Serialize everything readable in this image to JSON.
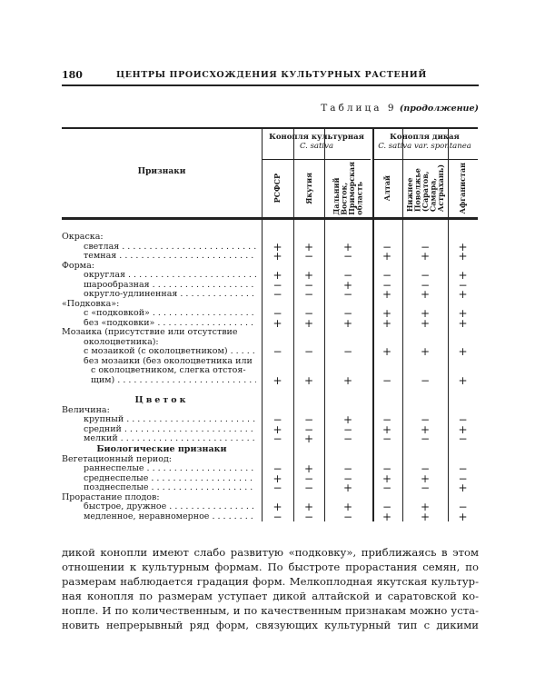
{
  "header": {
    "page_number": "180",
    "running_title": "ЦЕНТРЫ ПРОИСХОЖДЕНИЯ КУЛЬТУРНЫХ РАСТЕНИЙ"
  },
  "table": {
    "title": "Таблица 9",
    "title_note": "(продолжение)",
    "feature_header": "Признаки",
    "groups": [
      {
        "name": "Конопля культурная",
        "latin": "C. sativa"
      },
      {
        "name": "Конопля дикая",
        "latin": "C. sativa var. spontanea"
      }
    ],
    "columns": [
      "РСФСР",
      "Якутия",
      "Дальний\nВосток,\nПриморская\nобласть",
      "Алтай",
      "Нижнее\nПоволжье\n(Саратов,\nСамара,\nАстрахань)",
      "Афганистан"
    ],
    "rows": [
      {
        "label": "Окраска:",
        "level": 0,
        "values": null
      },
      {
        "label": "светлая",
        "level": 1,
        "values": [
          "+",
          "+",
          "+",
          "−",
          "−",
          "+"
        ]
      },
      {
        "label": "темная",
        "level": 1,
        "values": [
          "+",
          "−",
          "−",
          "+",
          "+",
          "+"
        ]
      },
      {
        "label": "Форма:",
        "level": 0,
        "values": null
      },
      {
        "label": "округлая",
        "level": 1,
        "values": [
          "+",
          "+",
          "−",
          "−",
          "−",
          "+"
        ]
      },
      {
        "label": "шарообразная",
        "level": 1,
        "values": [
          "−",
          "−",
          "+",
          "−",
          "−",
          "−"
        ]
      },
      {
        "label": "округло-удлиненная",
        "level": 1,
        "values": [
          "−",
          "−",
          "−",
          "+",
          "+",
          "+"
        ]
      },
      {
        "label": "«Подковка»:",
        "level": 0,
        "values": null
      },
      {
        "label": "с «подковкой»",
        "level": 1,
        "values": [
          "−",
          "−",
          "−",
          "+",
          "+",
          "+"
        ]
      },
      {
        "label": "без «подковки»",
        "level": 1,
        "values": [
          "+",
          "+",
          "+",
          "+",
          "+",
          "+"
        ]
      },
      {
        "label": "Мозаика (присутствие или отсутствие",
        "level": 0,
        "values": null
      },
      {
        "label": "околоцветника):",
        "level": 1,
        "values": null
      },
      {
        "label": "с мозаикой (с околоцветником)",
        "level": 1,
        "values": [
          "−",
          "−",
          "−",
          "+",
          "+",
          "+"
        ]
      },
      {
        "label": "без мозаики (без околоцветника или",
        "level": 1,
        "values": null
      },
      {
        "label": "с околоцветником, слегка отстоя-",
        "level": 2,
        "values": null
      },
      {
        "label": "щим)",
        "level": 2,
        "values": [
          "+",
          "+",
          "+",
          "−",
          "−",
          "+"
        ]
      },
      {
        "label": "",
        "level": 0,
        "values": null
      },
      {
        "label": "Цветок",
        "level": "section",
        "values": null
      },
      {
        "label": "Величина:",
        "level": 0,
        "values": null
      },
      {
        "label": "крупный",
        "level": 1,
        "values": [
          "−",
          "−",
          "+",
          "−",
          "−",
          "−"
        ]
      },
      {
        "label": "средний",
        "level": 1,
        "values": [
          "+",
          "−",
          "−",
          "+",
          "+",
          "+"
        ]
      },
      {
        "label": "мелкий",
        "level": 1,
        "values": [
          "−",
          "+",
          "−",
          "−",
          "−",
          "−"
        ]
      },
      {
        "label": "Биологические признаки",
        "level": "section",
        "values": null
      },
      {
        "label": "Вегетационный период:",
        "level": 0,
        "values": null
      },
      {
        "label": "раннеспелые",
        "level": 1,
        "values": [
          "−",
          "+",
          "−",
          "−",
          "−",
          "−"
        ]
      },
      {
        "label": "среднеспелые",
        "level": 1,
        "values": [
          "+",
          "−",
          "−",
          "+",
          "+",
          "−"
        ]
      },
      {
        "label": "позднеспелые",
        "level": 1,
        "values": [
          "−",
          "−",
          "+",
          "−",
          "−",
          "+"
        ]
      },
      {
        "label": "Прорастание плодов:",
        "level": 0,
        "values": null
      },
      {
        "label": "быстрое, дружное",
        "level": 1,
        "values": [
          "+",
          "+",
          "+",
          "−",
          "+",
          "−"
        ]
      },
      {
        "label": "медленное, неравномерное",
        "level": 1,
        "values": [
          "−",
          "−",
          "−",
          "+",
          "+",
          "+"
        ]
      }
    ]
  },
  "paragraph": [
    "дикой конопли имеют слабо развитую «подковку», приближаясь в этом",
    "отношении к культурным формам. По быстроте прорастания семян, по",
    "размерам наблюдается градация форм. Мелкоплодная якутская культур-",
    "ная конопля по размерам уступает дикой алтайской и саратовской ко-",
    "нопле. И по количественным, и по качественным признакам можно уста-",
    "новить непрерывный ряд форм, связующих культурный тип с дикими"
  ]
}
